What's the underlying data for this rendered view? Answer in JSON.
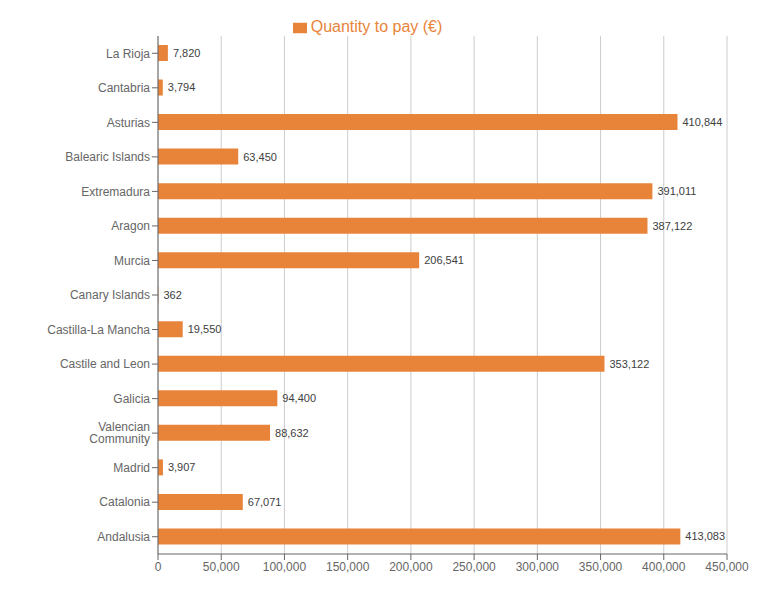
{
  "chart_data": {
    "type": "bar",
    "orientation": "horizontal",
    "categories": [
      "Andalusia",
      "Catalonia",
      "Madrid",
      "Valencian Community",
      "Galicia",
      "Castile and Leon",
      "Castilla-La Mancha",
      "Canary Islands",
      "Murcia",
      "Aragon",
      "Extremadura",
      "Balearic Islands",
      "Asturias",
      "Cantabria",
      "La Rioja"
    ],
    "series": [
      {
        "name": "Quantity to pay (€)",
        "color": "#E8843A",
        "values": [
          413083,
          67071,
          3907,
          88632,
          94400,
          353122,
          19550,
          362,
          206541,
          387122,
          391011,
          63450,
          410844,
          3794,
          7820
        ],
        "value_labels": [
          "413,083",
          "67,071",
          "3,907",
          "88,632",
          "94,400",
          "353,122",
          "19,550",
          "362",
          "206,541",
          "387,122",
          "391,011",
          "63,450",
          "410,844",
          "3,794",
          "7,820"
        ]
      }
    ],
    "xlim": [
      0,
      450000
    ],
    "xticks": [
      0,
      {
        "value": 50000,
        "label": "50,000"
      },
      {
        "value": 100000,
        "label": "100,000"
      },
      {
        "value": 150000,
        "label": "150,000"
      },
      {
        "value": 200000,
        "label": "200,000"
      },
      {
        "value": 250000,
        "label": "250,000"
      },
      {
        "value": 300000,
        "label": "300,000"
      },
      {
        "value": 350000,
        "label": "350,000"
      },
      {
        "value": 400000,
        "label": "400,000"
      },
      {
        "value": 450000,
        "label": "450,000"
      }
    ],
    "grid": true,
    "legend": "top",
    "data_labels": true
  }
}
